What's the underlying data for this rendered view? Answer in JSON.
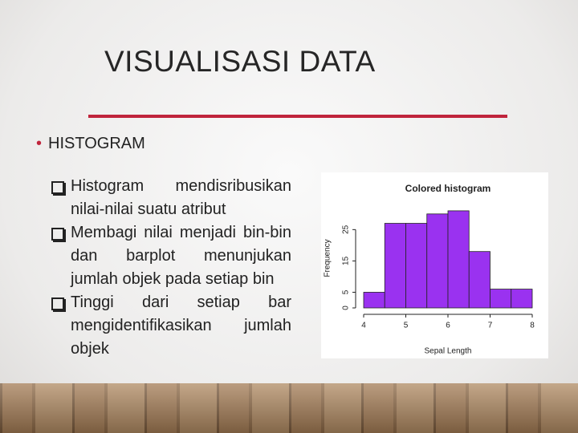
{
  "header": {
    "title": "VISUALISASI DATA"
  },
  "bullet": "HISTOGRAM",
  "items": [
    "Histogram mendisribusikan nilai-nilai suatu atribut",
    "Membagi nilai menjadi bin-bin dan barplot menunjukan jumlah objek pada setiap bin",
    "Tinggi dari setiap bar mengidentifikasikan jumlah objek"
  ],
  "chart_data": {
    "type": "histogram",
    "title": "Colored histogram",
    "x_label": "Sepal Length",
    "y_label": "Frequency",
    "bins": [
      4,
      4.5,
      5,
      5.5,
      6,
      6.5,
      7,
      7.5,
      8
    ],
    "values": [
      5,
      27,
      27,
      30,
      31,
      18,
      6,
      6
    ],
    "color": "#9a32f0",
    "xlim": [
      4,
      8
    ],
    "xticks": [
      4,
      5,
      6,
      7,
      8
    ],
    "ylim": [
      0,
      32
    ],
    "yticks": [
      0,
      5,
      15,
      25
    ]
  }
}
